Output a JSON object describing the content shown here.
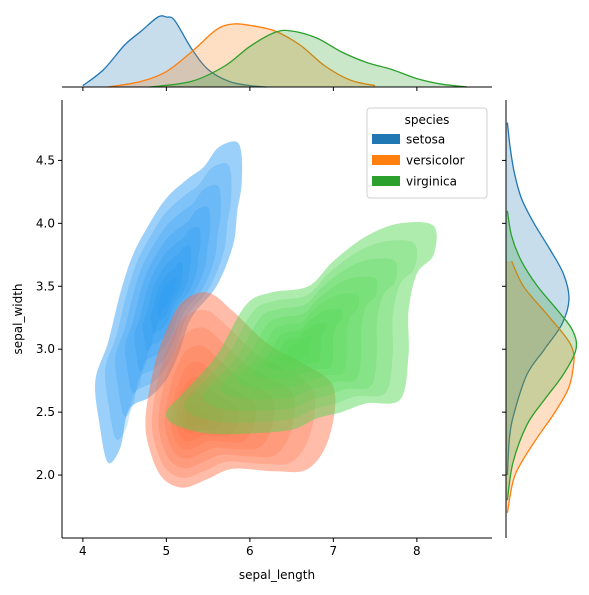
{
  "chart_data": {
    "type": "kde-jointplot",
    "xlabel": "sepal_length",
    "ylabel": "sepal_width",
    "xlim": [
      3.75,
      8.9
    ],
    "ylim": [
      1.5,
      4.98
    ],
    "x_ticks": [
      4,
      5,
      6,
      7,
      8
    ],
    "y_ticks": [
      2.0,
      2.5,
      3.0,
      3.5,
      4.0,
      4.5
    ],
    "legend": {
      "title": "species",
      "position": "top-right",
      "entries": [
        "setosa",
        "versicolor",
        "virginica"
      ]
    },
    "series": [
      {
        "name": "setosa",
        "color": "#1f77b4",
        "fill_color": "#2196f3",
        "joint_center": [
          5.0,
          3.42
        ],
        "joint_outline": [
          [
            4.3,
            2.1
          ],
          [
            4.45,
            2.22
          ],
          [
            4.55,
            2.52
          ],
          [
            4.8,
            2.62
          ],
          [
            5.0,
            2.76
          ],
          [
            5.15,
            2.97
          ],
          [
            5.3,
            3.25
          ],
          [
            5.6,
            3.5
          ],
          [
            5.8,
            3.83
          ],
          [
            5.85,
            4.1
          ],
          [
            5.9,
            4.3
          ],
          [
            5.9,
            4.55
          ],
          [
            5.83,
            4.65
          ],
          [
            5.62,
            4.6
          ],
          [
            5.45,
            4.45
          ],
          [
            5.25,
            4.35
          ],
          [
            5.0,
            4.2
          ],
          [
            4.8,
            4.0
          ],
          [
            4.6,
            3.75
          ],
          [
            4.45,
            3.45
          ],
          [
            4.3,
            3.05
          ],
          [
            4.15,
            2.75
          ],
          [
            4.2,
            2.4
          ]
        ],
        "marginal_x": {
          "x": [
            4.0,
            4.25,
            4.5,
            4.7,
            4.9,
            5.0,
            5.1,
            5.3,
            5.5,
            5.75,
            6.0,
            6.2
          ],
          "density": [
            0.02,
            0.25,
            0.6,
            0.8,
            1.0,
            1.0,
            0.95,
            0.55,
            0.25,
            0.08,
            0.02,
            0.0
          ]
        },
        "marginal_y": {
          "y": [
            2.0,
            2.3,
            2.5,
            2.8,
            3.0,
            3.2,
            3.4,
            3.6,
            3.8,
            4.0,
            4.2,
            4.4,
            4.6,
            4.8
          ],
          "density": [
            0.02,
            0.05,
            0.12,
            0.3,
            0.55,
            0.8,
            0.9,
            0.82,
            0.62,
            0.4,
            0.22,
            0.12,
            0.06,
            0.02
          ]
        }
      },
      {
        "name": "versicolor",
        "color": "#ff7f0e",
        "fill_color": "#ff6a3d",
        "joint_center": [
          5.3,
          2.45
        ],
        "joint_outline": [
          [
            4.75,
            2.45
          ],
          [
            4.8,
            2.2
          ],
          [
            4.95,
            1.98
          ],
          [
            5.2,
            1.9
          ],
          [
            5.5,
            1.97
          ],
          [
            5.8,
            2.05
          ],
          [
            6.3,
            2.03
          ],
          [
            6.7,
            2.05
          ],
          [
            6.95,
            2.3
          ],
          [
            7.0,
            2.7
          ],
          [
            6.6,
            2.9
          ],
          [
            6.2,
            3.05
          ],
          [
            5.8,
            3.3
          ],
          [
            5.5,
            3.45
          ],
          [
            5.2,
            3.38
          ],
          [
            5.0,
            3.15
          ],
          [
            4.85,
            2.85
          ]
        ],
        "marginal_x": {
          "x": [
            4.3,
            4.7,
            5.0,
            5.3,
            5.6,
            5.8,
            6.0,
            6.3,
            6.6,
            6.9,
            7.2,
            7.5
          ],
          "density": [
            0.0,
            0.08,
            0.22,
            0.5,
            0.82,
            0.9,
            0.88,
            0.8,
            0.6,
            0.3,
            0.1,
            0.02
          ]
        },
        "marginal_y": {
          "y": [
            1.7,
            1.95,
            2.1,
            2.3,
            2.5,
            2.7,
            2.9,
            3.0,
            3.1,
            3.3,
            3.5,
            3.7
          ],
          "density": [
            0.02,
            0.1,
            0.22,
            0.45,
            0.7,
            0.9,
            0.97,
            0.95,
            0.85,
            0.55,
            0.25,
            0.08
          ]
        }
      },
      {
        "name": "virginica",
        "color": "#2ca02c",
        "fill_color": "#4cd44c",
        "joint_center": [
          6.55,
          2.98
        ],
        "joint_outline": [
          [
            5.0,
            2.5
          ],
          [
            5.2,
            2.65
          ],
          [
            5.6,
            2.95
          ],
          [
            5.95,
            3.35
          ],
          [
            6.25,
            3.45
          ],
          [
            6.7,
            3.5
          ],
          [
            7.0,
            3.7
          ],
          [
            7.4,
            3.9
          ],
          [
            7.8,
            4.0
          ],
          [
            8.2,
            3.98
          ],
          [
            8.2,
            3.75
          ],
          [
            8.0,
            3.6
          ],
          [
            7.9,
            3.3
          ],
          [
            7.9,
            2.95
          ],
          [
            7.8,
            2.6
          ],
          [
            7.4,
            2.57
          ],
          [
            7.1,
            2.5
          ],
          [
            6.8,
            2.45
          ],
          [
            6.5,
            2.36
          ],
          [
            6.0,
            2.33
          ],
          [
            5.5,
            2.33
          ],
          [
            5.1,
            2.4
          ]
        ],
        "marginal_x": {
          "x": [
            4.8,
            5.3,
            5.7,
            6.0,
            6.3,
            6.5,
            6.8,
            7.1,
            7.4,
            7.7,
            8.0,
            8.3,
            8.6
          ],
          "density": [
            0.0,
            0.08,
            0.3,
            0.58,
            0.78,
            0.8,
            0.7,
            0.5,
            0.35,
            0.25,
            0.12,
            0.04,
            0.0
          ]
        },
        "marginal_y": {
          "y": [
            1.8,
            2.1,
            2.4,
            2.6,
            2.8,
            3.0,
            3.15,
            3.3,
            3.5,
            3.7,
            3.9,
            4.1
          ],
          "density": [
            0.02,
            0.1,
            0.3,
            0.55,
            0.82,
            1.0,
            0.95,
            0.75,
            0.45,
            0.22,
            0.08,
            0.02
          ]
        }
      }
    ]
  }
}
